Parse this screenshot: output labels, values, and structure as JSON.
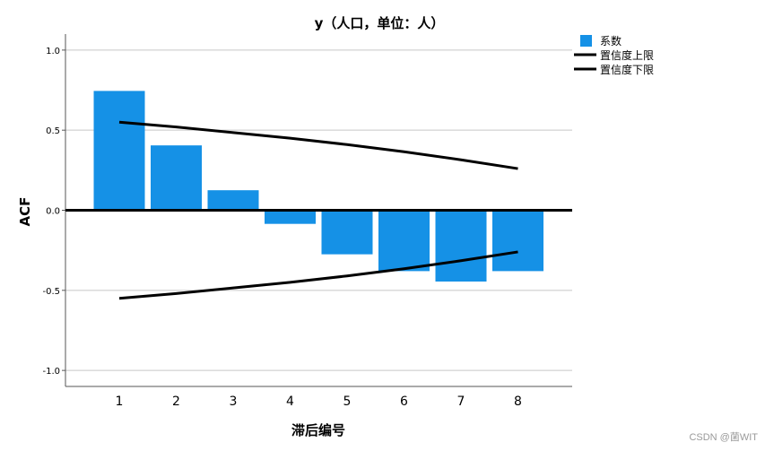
{
  "colors": {
    "bar": "#1591e6",
    "line": "#000000",
    "grid": "#c8c8c8"
  },
  "watermark": "CSDN @菌WIT",
  "chart_data": {
    "type": "bar",
    "title": "y（人口，单位：人）",
    "xlabel": "滞后编号",
    "ylabel": "ACF",
    "categories": [
      "1",
      "2",
      "3",
      "4",
      "5",
      "6",
      "7",
      "8"
    ],
    "ylim": [
      -1.1,
      1.1
    ],
    "yticks": [
      {
        "value": 1.0,
        "label": "1.0"
      },
      {
        "value": 0.5,
        "label": "0.5"
      },
      {
        "value": 0.0,
        "label": "0.0"
      },
      {
        "value": -0.5,
        "label": "-0.5"
      },
      {
        "value": -1.0,
        "label": "-1.0"
      }
    ],
    "grid": true,
    "legend_position": "top-right",
    "series": [
      {
        "name": "系数",
        "kind": "bar",
        "values": [
          0.745,
          0.405,
          0.125,
          -0.085,
          -0.275,
          -0.38,
          -0.445,
          -0.38
        ]
      },
      {
        "name": "置信度上限",
        "kind": "line",
        "values": [
          0.55,
          0.52,
          0.485,
          0.45,
          0.41,
          0.365,
          0.315,
          0.26
        ]
      },
      {
        "name": "置信度下限",
        "kind": "line",
        "values": [
          -0.55,
          -0.52,
          -0.485,
          -0.45,
          -0.41,
          -0.365,
          -0.315,
          -0.26
        ]
      }
    ]
  }
}
